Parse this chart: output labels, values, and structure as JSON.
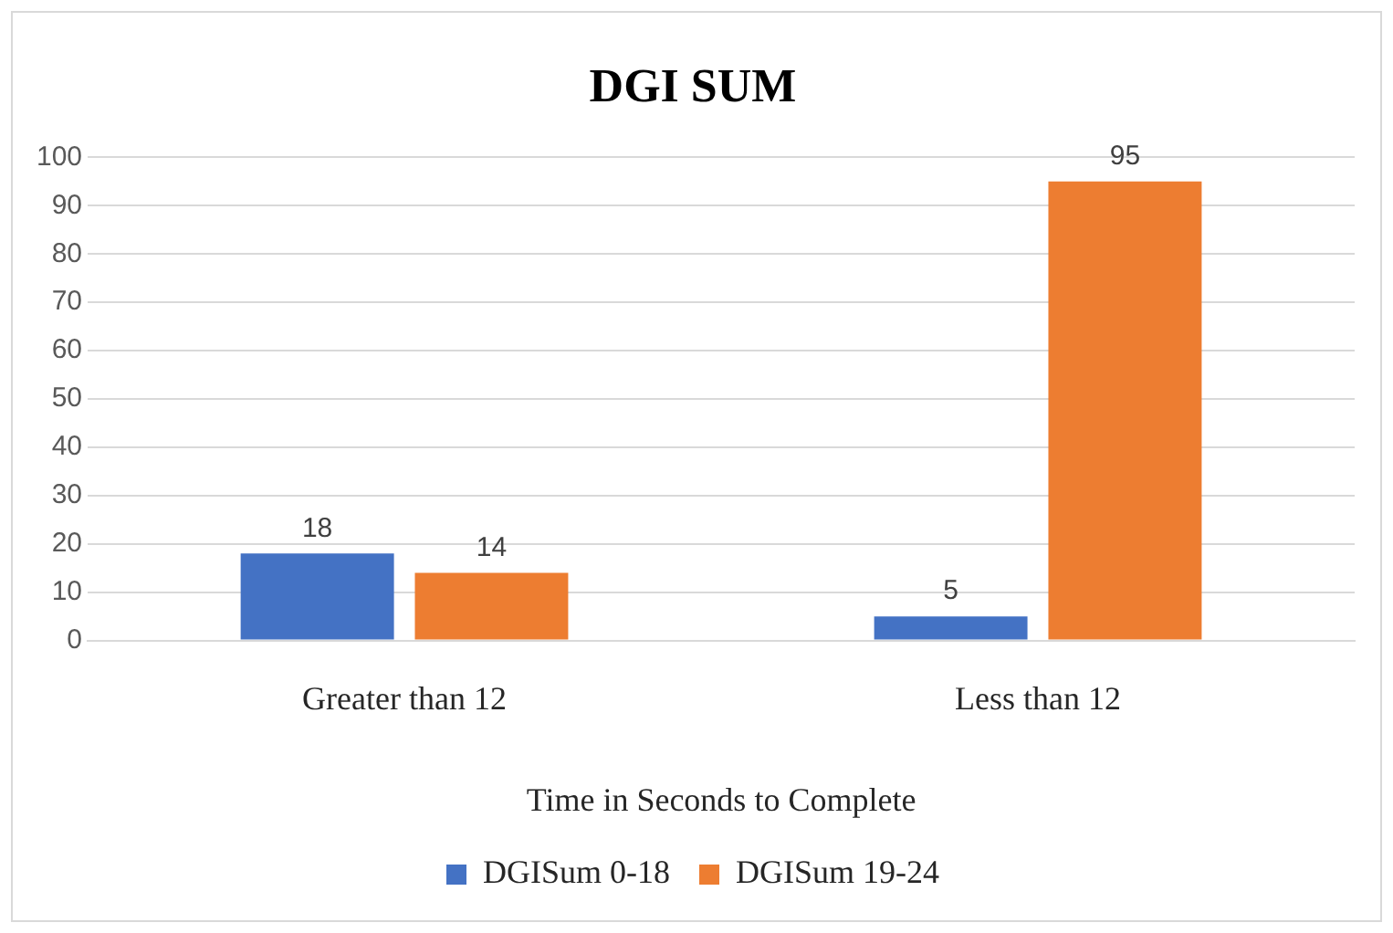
{
  "chart_data": {
    "type": "bar",
    "title": "DGI SUM",
    "xlabel": "Time in Seconds to Complete",
    "categories": [
      "Greater than 12",
      "Less than 12"
    ],
    "series": [
      {
        "name": "DGISum 0-18",
        "color": "#4472c4",
        "values": [
          18,
          5
        ]
      },
      {
        "name": "DGISum 19-24",
        "color": "#ed7d31",
        "values": [
          14,
          95
        ]
      }
    ],
    "ylim": [
      0,
      100
    ],
    "yticks": [
      0,
      10,
      20,
      30,
      40,
      50,
      60,
      70,
      80,
      90,
      100
    ],
    "grid": "y",
    "legend": "bottom",
    "data_labels": true
  }
}
